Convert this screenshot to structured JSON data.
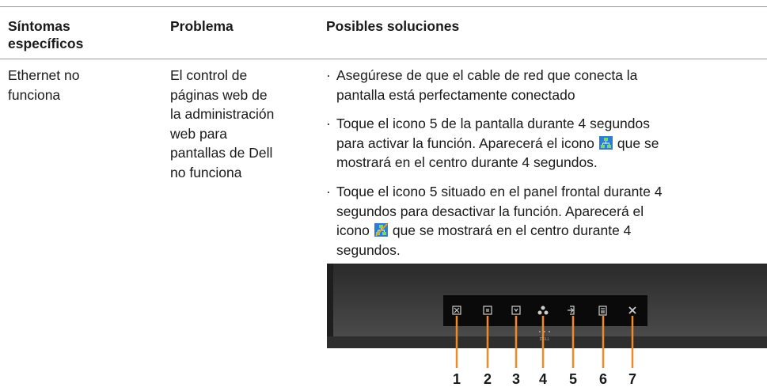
{
  "table": {
    "headers": [
      "Síntomas específicos",
      "Problema",
      "Posibles soluciones"
    ],
    "rows": [
      [
        [
          "Ethernet no",
          "funciona"
        ],
        [
          "El control de",
          "páginas web de",
          "la administración",
          "web para",
          "pantallas de Dell",
          "no funciona"
        ],
        [
          [
            [
              "Asegúrese de que el cable de red que conecta la"
            ],
            [
              "pantalla está perfectamente conectado"
            ]
          ],
          [
            [
              "Toque el icono 5 de la pantalla durante 4 segundos"
            ],
            [
              "para activar la función. Aparecerá el icono",
              "que se"
            ],
            [
              "mostrará en el centro durante 4 segundos."
            ]
          ],
          [
            [
              "Toque el icono 5 situado en el panel frontal durante 4"
            ],
            [
              "segundos para desactivar la función. Aparecerá el"
            ],
            [
              "icono",
              "que se mostrará en el centro durante 4"
            ],
            [
              "segundos."
            ]
          ]
        ]
      ]
    ]
  },
  "figure": {
    "logo": "DELL",
    "callouts": [
      "1",
      "2",
      "3",
      "4",
      "5",
      "6",
      "7"
    ]
  }
}
